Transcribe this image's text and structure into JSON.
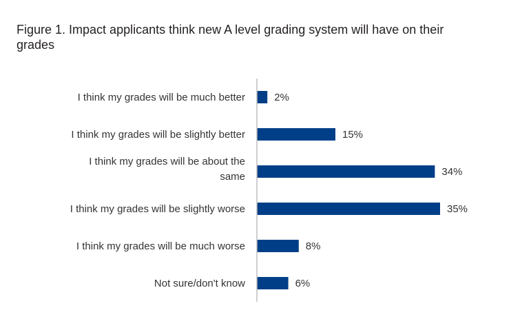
{
  "chart_data": {
    "type": "bar",
    "orientation": "horizontal",
    "title": "Figure 1. Impact applicants think new A level grading system will have on their grades",
    "categories": [
      "I think my grades will be much better",
      "I think my grades will be slightly better",
      "I think my grades will be about the same",
      "I think my grades will be slightly worse",
      "I think my grades will be much worse",
      "Not sure/don't know"
    ],
    "values": [
      2,
      15,
      34,
      35,
      8,
      6
    ],
    "value_labels": [
      "2%",
      "15%",
      "34%",
      "35%",
      "8%",
      "6%"
    ],
    "unit": "%",
    "xlim": [
      0,
      35
    ],
    "bar_color": "#003f87",
    "axis_color": "#bfbfbf",
    "grid": false,
    "legend": "none"
  }
}
